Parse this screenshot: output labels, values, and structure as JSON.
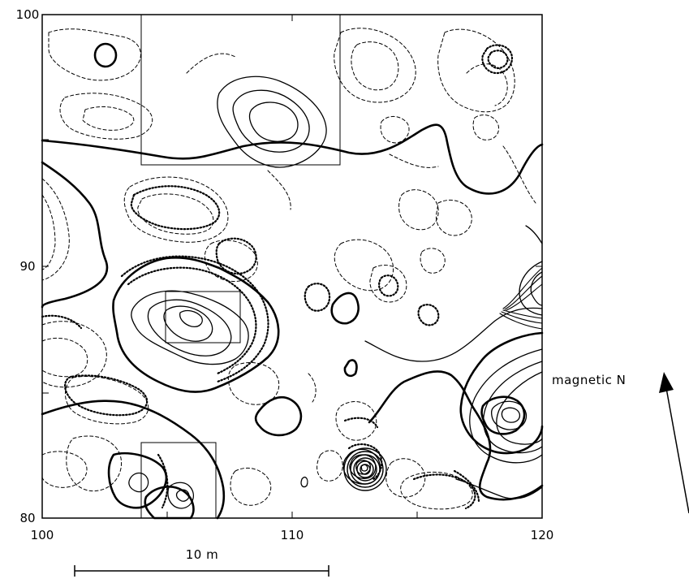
{
  "figure": {
    "axes": {
      "x_min": 100,
      "x_max": 120,
      "y_min": 80,
      "y_max": 100,
      "x_tick_labels": [
        "100",
        "110",
        "120"
      ],
      "y_tick_labels": [
        "100",
        "90",
        "80"
      ]
    },
    "north_label": "magnetic N",
    "scale_bar_label": "10 m",
    "scale_bar_length_m": 10
  }
}
